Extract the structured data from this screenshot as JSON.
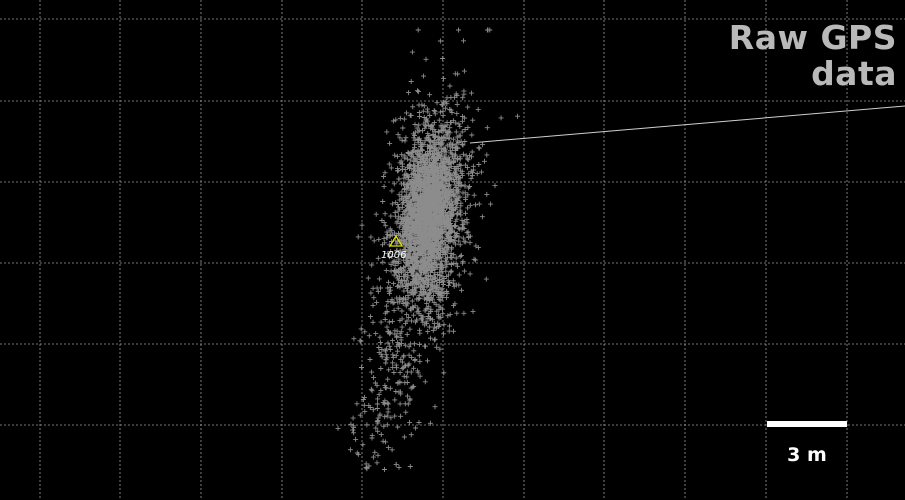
{
  "map": {
    "title_line1": "Raw GPS",
    "title_line2": "data",
    "scale_label": "3 m",
    "station_label": "1006",
    "background_color": "#000000",
    "point_color": "#8c8c8c",
    "marker_color": "#e0e000",
    "grid_color": "#9a9a9a",
    "marker_icon": "triangle-icon",
    "point_icon": "plus-icon"
  }
}
